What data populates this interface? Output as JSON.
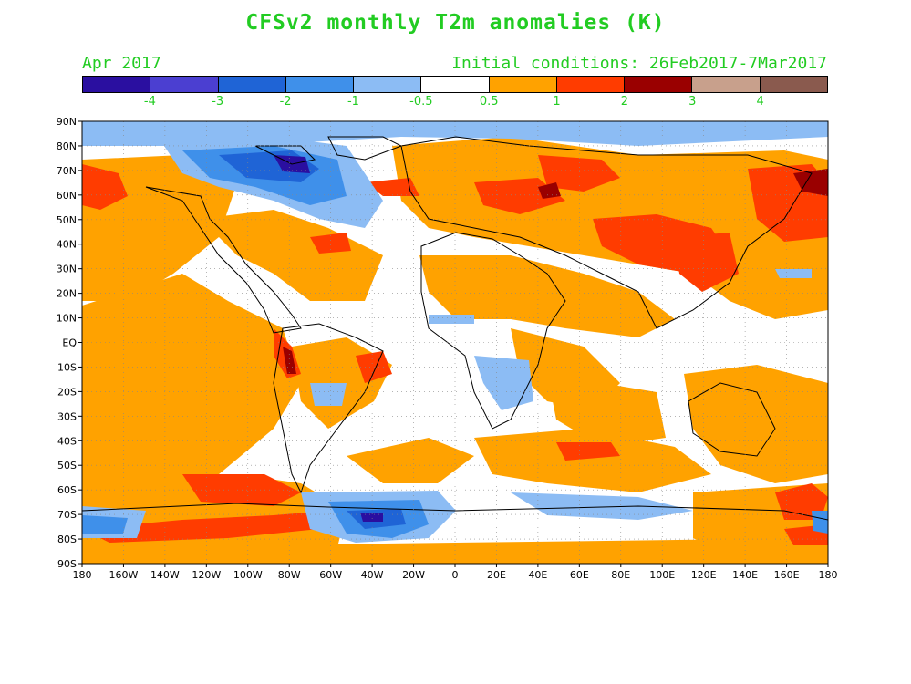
{
  "title": "CFSv2 monthly T2m anomalies (K)",
  "month": "Apr 2017",
  "initial_conditions": "Initial conditions: 26Feb2017-7Mar2017",
  "colorbar": {
    "colors": [
      "#2a0fa0",
      "#4b3fd1",
      "#1f64d6",
      "#3f90ea",
      "#8cbcf4",
      "#ffffff",
      "#ffa200",
      "#ff3c00",
      "#9a0000",
      "#c8a08c",
      "#8a5a4e"
    ],
    "labels": [
      "-4",
      "-3",
      "-2",
      "-1",
      "-0.5",
      "0.5",
      "1",
      "2",
      "3",
      "4"
    ]
  },
  "lat_labels": [
    "90N",
    "80N",
    "70N",
    "60N",
    "50N",
    "40N",
    "30N",
    "20N",
    "10N",
    "EQ",
    "10S",
    "20S",
    "30S",
    "40S",
    "50S",
    "60S",
    "70S",
    "80S",
    "90S"
  ],
  "lon_labels": [
    "180",
    "160W",
    "140W",
    "120W",
    "100W",
    "80W",
    "60W",
    "40W",
    "20W",
    "0",
    "20E",
    "40E",
    "60E",
    "80E",
    "100E",
    "120E",
    "140E",
    "160E",
    "180"
  ],
  "legend_colors": {
    "text": "#22cc22",
    "coast": "#000000",
    "grid": "#888888"
  }
}
